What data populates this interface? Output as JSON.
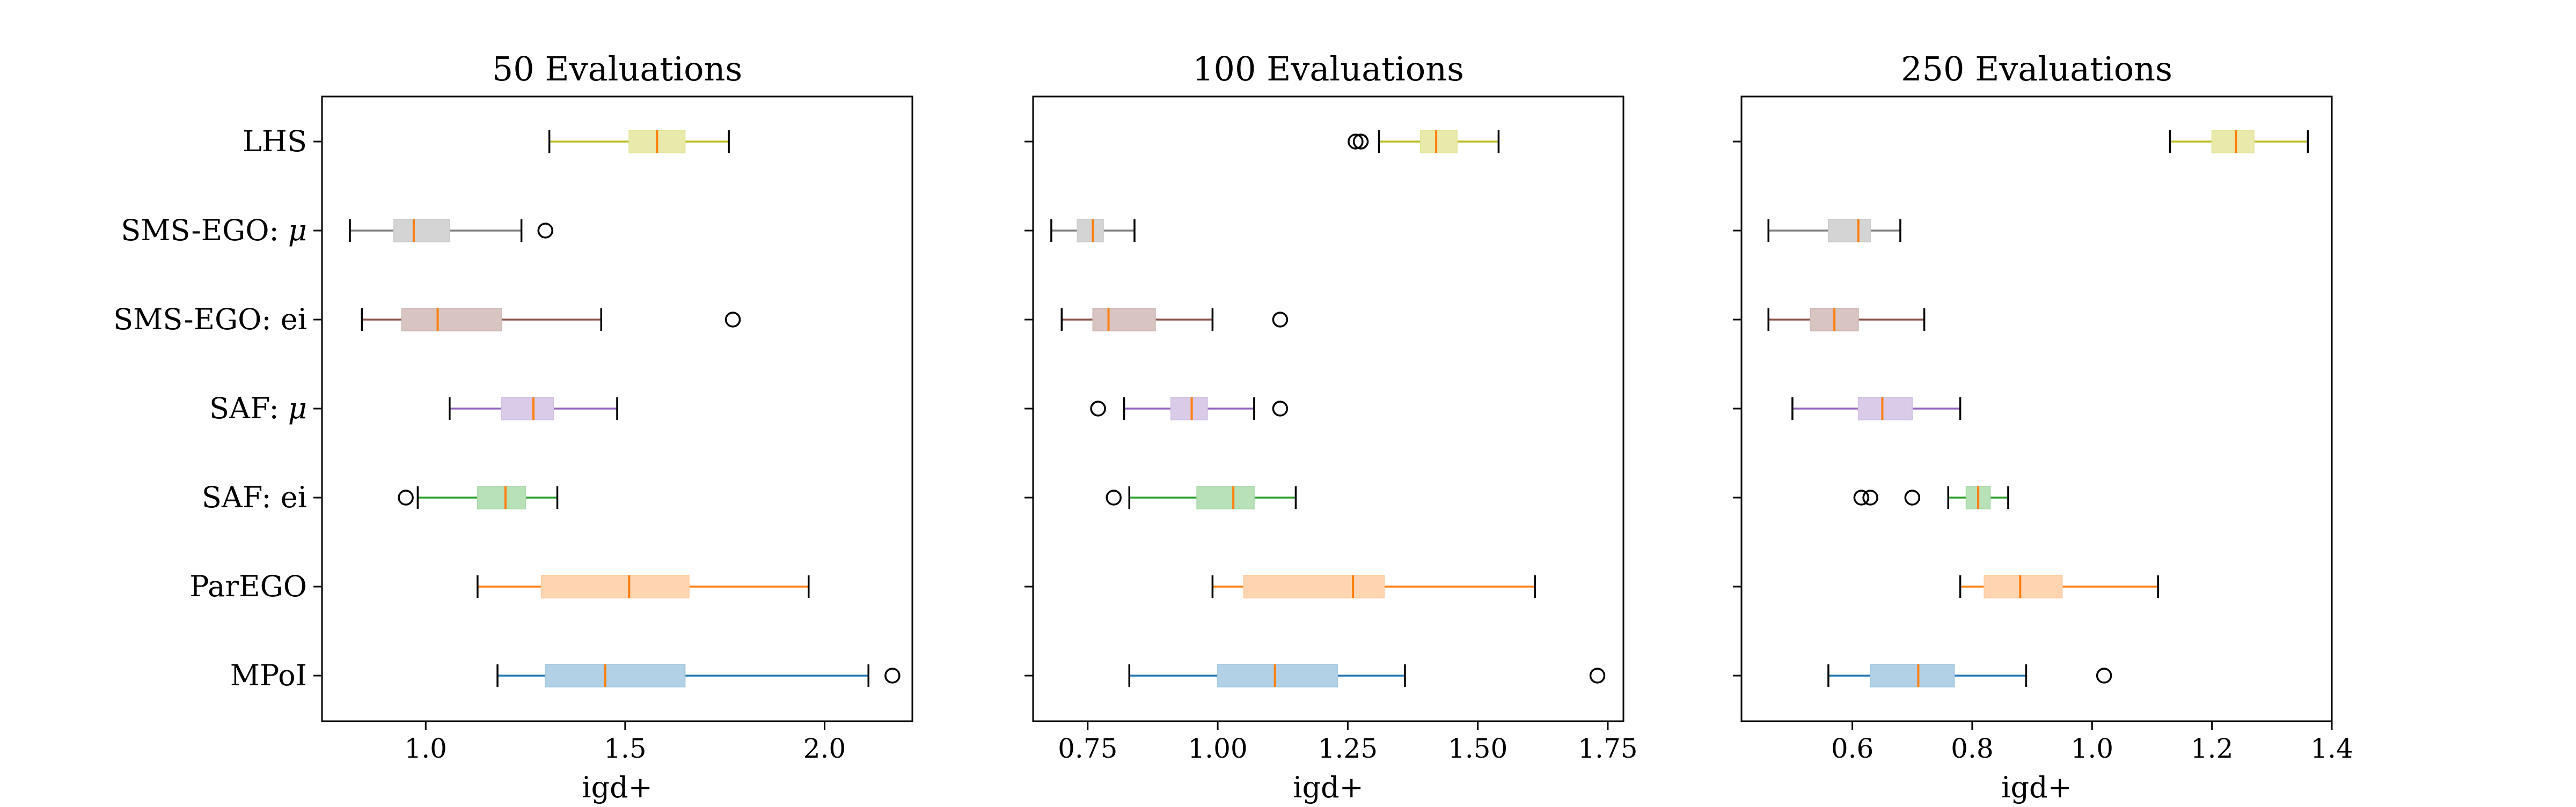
{
  "chart_data": [
    {
      "type": "boxplot",
      "title": "50 Evaluations",
      "xlabel": "igd+",
      "xlim": [
        0.74,
        2.22
      ],
      "xticks": [
        1.0,
        1.5,
        2.0
      ],
      "xtick_labels": [
        "1.0",
        "1.5",
        "2.0"
      ],
      "show_category_labels": true,
      "categories": [
        "LHS",
        "SMS-EGO: μ",
        "SMS-EGO: ei",
        "SAF: μ",
        "SAF: ei",
        "ParEGO",
        "MPoI"
      ],
      "boxes": [
        {
          "category": "LHS",
          "whislo": 1.31,
          "q1": 1.51,
          "med": 1.58,
          "q3": 1.65,
          "whishi": 1.76,
          "fliers": []
        },
        {
          "category": "SMS-EGO: μ",
          "whislo": 0.81,
          "q1": 0.92,
          "med": 0.97,
          "q3": 1.06,
          "whishi": 1.24,
          "fliers": [
            1.3
          ]
        },
        {
          "category": "SMS-EGO: ei",
          "whislo": 0.84,
          "q1": 0.94,
          "med": 1.03,
          "q3": 1.19,
          "whishi": 1.44,
          "fliers": [
            1.77
          ]
        },
        {
          "category": "SAF: μ",
          "whislo": 1.06,
          "q1": 1.19,
          "med": 1.27,
          "q3": 1.32,
          "whishi": 1.48,
          "fliers": []
        },
        {
          "category": "SAF: ei",
          "whislo": 0.98,
          "q1": 1.13,
          "med": 1.2,
          "q3": 1.25,
          "whishi": 1.33,
          "fliers": [
            0.95
          ]
        },
        {
          "category": "ParEGO",
          "whislo": 1.13,
          "q1": 1.29,
          "med": 1.51,
          "q3": 1.66,
          "whishi": 1.96,
          "fliers": []
        },
        {
          "category": "MPoI",
          "whislo": 1.18,
          "q1": 1.3,
          "med": 1.45,
          "q3": 1.65,
          "whishi": 2.11,
          "fliers": [
            2.17
          ]
        }
      ]
    },
    {
      "type": "boxplot",
      "title": "100 Evaluations",
      "xlabel": "igd+",
      "xlim": [
        0.645,
        1.78
      ],
      "xticks": [
        0.75,
        1.0,
        1.25,
        1.5,
        1.75
      ],
      "xtick_labels": [
        "0.75",
        "1.00",
        "1.25",
        "1.50",
        "1.75"
      ],
      "show_category_labels": false,
      "categories": [
        "LHS",
        "SMS-EGO: μ",
        "SMS-EGO: ei",
        "SAF: μ",
        "SAF: ei",
        "ParEGO",
        "MPoI"
      ],
      "boxes": [
        {
          "category": "LHS",
          "whislo": 1.31,
          "q1": 1.39,
          "med": 1.42,
          "q3": 1.46,
          "whishi": 1.54,
          "fliers": [
            1.265,
            1.275
          ]
        },
        {
          "category": "SMS-EGO: μ",
          "whislo": 0.68,
          "q1": 0.73,
          "med": 0.76,
          "q3": 0.78,
          "whishi": 0.84,
          "fliers": []
        },
        {
          "category": "SMS-EGO: ei",
          "whislo": 0.7,
          "q1": 0.76,
          "med": 0.79,
          "q3": 0.88,
          "whishi": 0.99,
          "fliers": [
            1.12
          ]
        },
        {
          "category": "SAF: μ",
          "whislo": 0.82,
          "q1": 0.91,
          "med": 0.95,
          "q3": 0.98,
          "whishi": 1.07,
          "fliers": [
            0.77,
            1.12
          ]
        },
        {
          "category": "SAF: ei",
          "whislo": 0.83,
          "q1": 0.96,
          "med": 1.03,
          "q3": 1.07,
          "whishi": 1.15,
          "fliers": [
            0.8
          ]
        },
        {
          "category": "ParEGO",
          "whislo": 0.99,
          "q1": 1.05,
          "med": 1.26,
          "q3": 1.32,
          "whishi": 1.61,
          "fliers": []
        },
        {
          "category": "MPoI",
          "whislo": 0.83,
          "q1": 1.0,
          "med": 1.11,
          "q3": 1.23,
          "whishi": 1.36,
          "fliers": [
            1.73
          ]
        }
      ]
    },
    {
      "type": "boxplot",
      "title": "250 Evaluations",
      "xlabel": "igd+",
      "xlim": [
        0.415,
        1.4
      ],
      "xticks": [
        0.6,
        0.8,
        1.0,
        1.2,
        1.4
      ],
      "xtick_labels": [
        "0.6",
        "0.8",
        "1.0",
        "1.2",
        "1.4"
      ],
      "show_category_labels": false,
      "categories": [
        "LHS",
        "SMS-EGO: μ",
        "SMS-EGO: ei",
        "SAF: μ",
        "SAF: ei",
        "ParEGO",
        "MPoI"
      ],
      "boxes": [
        {
          "category": "LHS",
          "whislo": 1.13,
          "q1": 1.2,
          "med": 1.24,
          "q3": 1.27,
          "whishi": 1.36,
          "fliers": []
        },
        {
          "category": "SMS-EGO: μ",
          "whislo": 0.46,
          "q1": 0.56,
          "med": 0.61,
          "q3": 0.63,
          "whishi": 0.68,
          "fliers": []
        },
        {
          "category": "SMS-EGO: ei",
          "whislo": 0.46,
          "q1": 0.53,
          "med": 0.57,
          "q3": 0.61,
          "whishi": 0.72,
          "fliers": []
        },
        {
          "category": "SAF: μ",
          "whislo": 0.5,
          "q1": 0.61,
          "med": 0.65,
          "q3": 0.7,
          "whishi": 0.78,
          "fliers": []
        },
        {
          "category": "SAF: ei",
          "whislo": 0.76,
          "q1": 0.79,
          "med": 0.81,
          "q3": 0.83,
          "whishi": 0.86,
          "fliers": [
            0.615,
            0.63,
            0.7
          ]
        },
        {
          "category": "ParEGO",
          "whislo": 0.78,
          "q1": 0.82,
          "med": 0.88,
          "q3": 0.95,
          "whishi": 1.11,
          "fliers": []
        },
        {
          "category": "MPoI",
          "whislo": 0.56,
          "q1": 0.63,
          "med": 0.71,
          "q3": 0.77,
          "whishi": 0.89,
          "fliers": [
            1.02
          ]
        }
      ]
    }
  ],
  "colors": {
    "LHS": {
      "line": "#bcbd22",
      "fill": "#e4e59c"
    },
    "SMS-EGO: μ": {
      "line": "#7f7f7f",
      "fill": "#cccccc"
    },
    "SMS-EGO: ei": {
      "line": "#8c564b",
      "fill": "#d1bbb7"
    },
    "SAF: μ": {
      "line": "#9467bd",
      "fill": "#d4c2e5"
    },
    "SAF: ei": {
      "line": "#2ca02c",
      "fill": "#acdcac"
    },
    "ParEGO": {
      "line": "#ff7f0e",
      "fill": "#ffcea3"
    },
    "MPoI": {
      "line": "#1f77b4",
      "fill": "#a6c9e2"
    },
    "median": "#ff7f0e",
    "flier_edge": "#000000",
    "axis": "#000000"
  }
}
